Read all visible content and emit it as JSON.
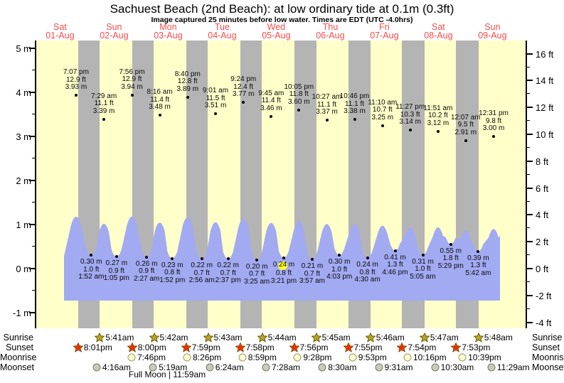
{
  "header": {
    "title": "Sachuest Beach (2nd Beach): at low  ordinary tide at 0.1m (0.3ft)",
    "subtitle": "Image captured 25 minutes before low water. Times are EDT (UTC -4.0hrs)"
  },
  "colors": {
    "plot_background": "#ffffc9",
    "night_band": "#b4b4b4",
    "tide_area": "#a2aaf2",
    "day_label_red": "#fa4b4b",
    "highlight_yellow": "#ffff2b"
  },
  "chart_data": {
    "type": "area",
    "title": "Sachuest Beach (2nd Beach): at low  ordinary tide at 0.1m (0.3ft)",
    "subtitle": "Image captured 25 minutes before low water. Times are EDT (UTC -4.0hrs)",
    "days": [
      {
        "name": "Sat",
        "date": "01-Aug"
      },
      {
        "name": "Sun",
        "date": "02-Aug"
      },
      {
        "name": "Mon",
        "date": "03-Aug"
      },
      {
        "name": "Tue",
        "date": "04-Aug"
      },
      {
        "name": "Wed",
        "date": "05-Aug"
      },
      {
        "name": "Thu",
        "date": "06-Aug"
      },
      {
        "name": "Fri",
        "date": "07-Aug"
      },
      {
        "name": "Sat",
        "date": "08-Aug"
      },
      {
        "name": "Sun",
        "date": "09-Aug"
      }
    ],
    "y_axis_left": {
      "unit": "m",
      "ticks": [
        {
          "label": "5 m",
          "v": 5
        },
        {
          "label": "4 m",
          "v": 4
        },
        {
          "label": "3 m",
          "v": 3
        },
        {
          "label": "2 m",
          "v": 2
        },
        {
          "label": "1 m",
          "v": 1
        },
        {
          "label": "0 m",
          "v": 0
        },
        {
          "label": "-1 m",
          "v": -1
        }
      ]
    },
    "y_axis_right": {
      "unit": "ft",
      "ticks": [
        {
          "label": "16 ft",
          "v": 16
        },
        {
          "label": "14 ft",
          "v": 14
        },
        {
          "label": "12 ft",
          "v": 12
        },
        {
          "label": "10 ft",
          "v": 10
        },
        {
          "label": "8 ft",
          "v": 8
        },
        {
          "label": "6 ft",
          "v": 6
        },
        {
          "label": "4 ft",
          "v": 4
        },
        {
          "label": "2 ft",
          "v": 2
        },
        {
          "label": "0 ft",
          "v": 0
        },
        {
          "label": "-2 ft",
          "v": -2
        },
        {
          "label": "-4 ft",
          "v": -4
        }
      ]
    },
    "high_tides": [
      {
        "day": 0,
        "time": "7:07 pm",
        "ft": "12.9 ft",
        "m": "3.93 m"
      },
      {
        "day": 1,
        "time": "7:29 am",
        "ft": "11.1 ft",
        "m": "3.39 m"
      },
      {
        "day": 1,
        "time": "7:56 pm",
        "ft": "12.9 ft",
        "m": "3.94 m"
      },
      {
        "day": 2,
        "time": "8:16 am",
        "ft": "11.4 ft",
        "m": "3.48 m"
      },
      {
        "day": 2,
        "time": "8:40 pm",
        "ft": "12.8 ft",
        "m": "3.89 m"
      },
      {
        "day": 3,
        "time": "9:01 am",
        "ft": "11.5 ft",
        "m": "3.51 m"
      },
      {
        "day": 3,
        "time": "9:24 pm",
        "ft": "12.4 ft",
        "m": "3.77 m"
      },
      {
        "day": 4,
        "time": "9:45 am",
        "ft": "11.4 ft",
        "m": "3.46 m"
      },
      {
        "day": 4,
        "time": "10:05 pm",
        "ft": "11.8 ft",
        "m": "3.60 m"
      },
      {
        "day": 5,
        "time": "10:27 am",
        "ft": "11.1 ft",
        "m": "3.37 m"
      },
      {
        "day": 5,
        "time": "10:46 pm",
        "ft": "11.1 ft",
        "m": "3.38 m"
      },
      {
        "day": 6,
        "time": "11:10 am",
        "ft": "10.7 ft",
        "m": "3.25 m"
      },
      {
        "day": 6,
        "time": "11:27 pm",
        "ft": "10.3 ft",
        "m": "3.14 m"
      },
      {
        "day": 7,
        "time": "11:51 am",
        "ft": "10.2 ft",
        "m": "3.12 m"
      },
      {
        "day": 8,
        "time": "12:07 am",
        "ft": "9.5 ft",
        "m": "2.91 m"
      },
      {
        "day": 8,
        "time": "12:31 pm",
        "ft": "9.8 ft",
        "m": "3.00 m"
      }
    ],
    "low_tides": [
      {
        "day": 1,
        "m": "0.30 m",
        "ft": "1.0 ft",
        "time": "1:52 am"
      },
      {
        "day": 1,
        "m": "0.27 m",
        "ft": "0.9 ft",
        "time": "1:05 pm"
      },
      {
        "day": 2,
        "m": "0.26 m",
        "ft": "0.9 ft",
        "time": "2:27 am"
      },
      {
        "day": 2,
        "m": "0.23 m",
        "ft": "0.8 ft",
        "time": "1:52 pm"
      },
      {
        "day": 3,
        "m": "0.22 m",
        "ft": "0.7 ft",
        "time": "2:56 am"
      },
      {
        "day": 3,
        "m": "0.22 m",
        "ft": "0.7 ft",
        "time": "2:37 pm"
      },
      {
        "day": 4,
        "m": "0.20 m",
        "ft": "0.7 ft",
        "time": "3:25 am"
      },
      {
        "day": 4,
        "m": "0.24 m",
        "ft": "0.8 ft",
        "time": "3:21 pm",
        "hl": "24"
      },
      {
        "day": 5,
        "m": "0.21 m",
        "ft": "0.7 ft",
        "time": "3:57 am"
      },
      {
        "day": 5,
        "m": "0.30 m",
        "ft": "1.0 ft",
        "time": "4:03 pm"
      },
      {
        "day": 6,
        "m": "0.24 m",
        "ft": "0.8 ft",
        "time": "4:30 am"
      },
      {
        "day": 6,
        "m": "0.41 m",
        "ft": "1.3 ft",
        "time": "4:46 pm"
      },
      {
        "day": 7,
        "m": "0.31 m",
        "ft": "1.0 ft",
        "time": "5:05 am"
      },
      {
        "day": 7,
        "m": "0.55 m",
        "ft": "1.8 ft",
        "time": "5:29 pm"
      },
      {
        "day": 8,
        "m": "0.39 m",
        "ft": "1.3 ft",
        "time": "5:42 am"
      }
    ],
    "astro": {
      "rows": [
        {
          "id": "sunrise",
          "label": "Sunrise",
          "icon": "sunrise-star-icon",
          "entries": [
            {
              "day": 1,
              "time": "5:41am"
            },
            {
              "day": 2,
              "time": "5:42am"
            },
            {
              "day": 3,
              "time": "5:43am"
            },
            {
              "day": 4,
              "time": "5:44am"
            },
            {
              "day": 5,
              "time": "5:45am"
            },
            {
              "day": 6,
              "time": "5:46am"
            },
            {
              "day": 7,
              "time": "5:47am"
            },
            {
              "day": 8,
              "time": "5:48am"
            }
          ]
        },
        {
          "id": "sunset",
          "label": "Sunset",
          "icon": "sunset-star-icon",
          "entries": [
            {
              "day": 0,
              "time": "8:01pm"
            },
            {
              "day": 1,
              "time": "8:00pm"
            },
            {
              "day": 2,
              "time": "7:59pm"
            },
            {
              "day": 3,
              "time": "7:58pm"
            },
            {
              "day": 4,
              "time": "7:56pm"
            },
            {
              "day": 5,
              "time": "7:55pm"
            },
            {
              "day": 6,
              "time": "7:54pm"
            },
            {
              "day": 7,
              "time": "7:53pm"
            }
          ]
        },
        {
          "id": "moonrise",
          "label": "Moonrise",
          "icon": "moonrise-icon",
          "entries": [
            {
              "day": 1,
              "time": "7:46pm"
            },
            {
              "day": 2,
              "time": "8:26pm"
            },
            {
              "day": 3,
              "time": "8:59pm"
            },
            {
              "day": 4,
              "time": "9:28pm"
            },
            {
              "day": 5,
              "time": "9:53pm"
            },
            {
              "day": 6,
              "time": "10:16pm"
            },
            {
              "day": 7,
              "time": "10:39pm"
            }
          ]
        },
        {
          "id": "moonset",
          "label": "Moonset",
          "icon": "moonset-icon",
          "entries": [
            {
              "day": 1,
              "time": "4:16am"
            },
            {
              "day": 2,
              "time": "5:19am"
            },
            {
              "day": 3,
              "time": "6:24am"
            },
            {
              "day": 4,
              "time": "7:28am"
            },
            {
              "day": 5,
              "time": "8:30am"
            },
            {
              "day": 6,
              "time": "9:31am"
            },
            {
              "day": 7,
              "time": "10:30am"
            },
            {
              "day": 8,
              "time": "11:29am"
            }
          ]
        }
      ],
      "full_moon_note": "Full Moon | 11:59am"
    }
  }
}
